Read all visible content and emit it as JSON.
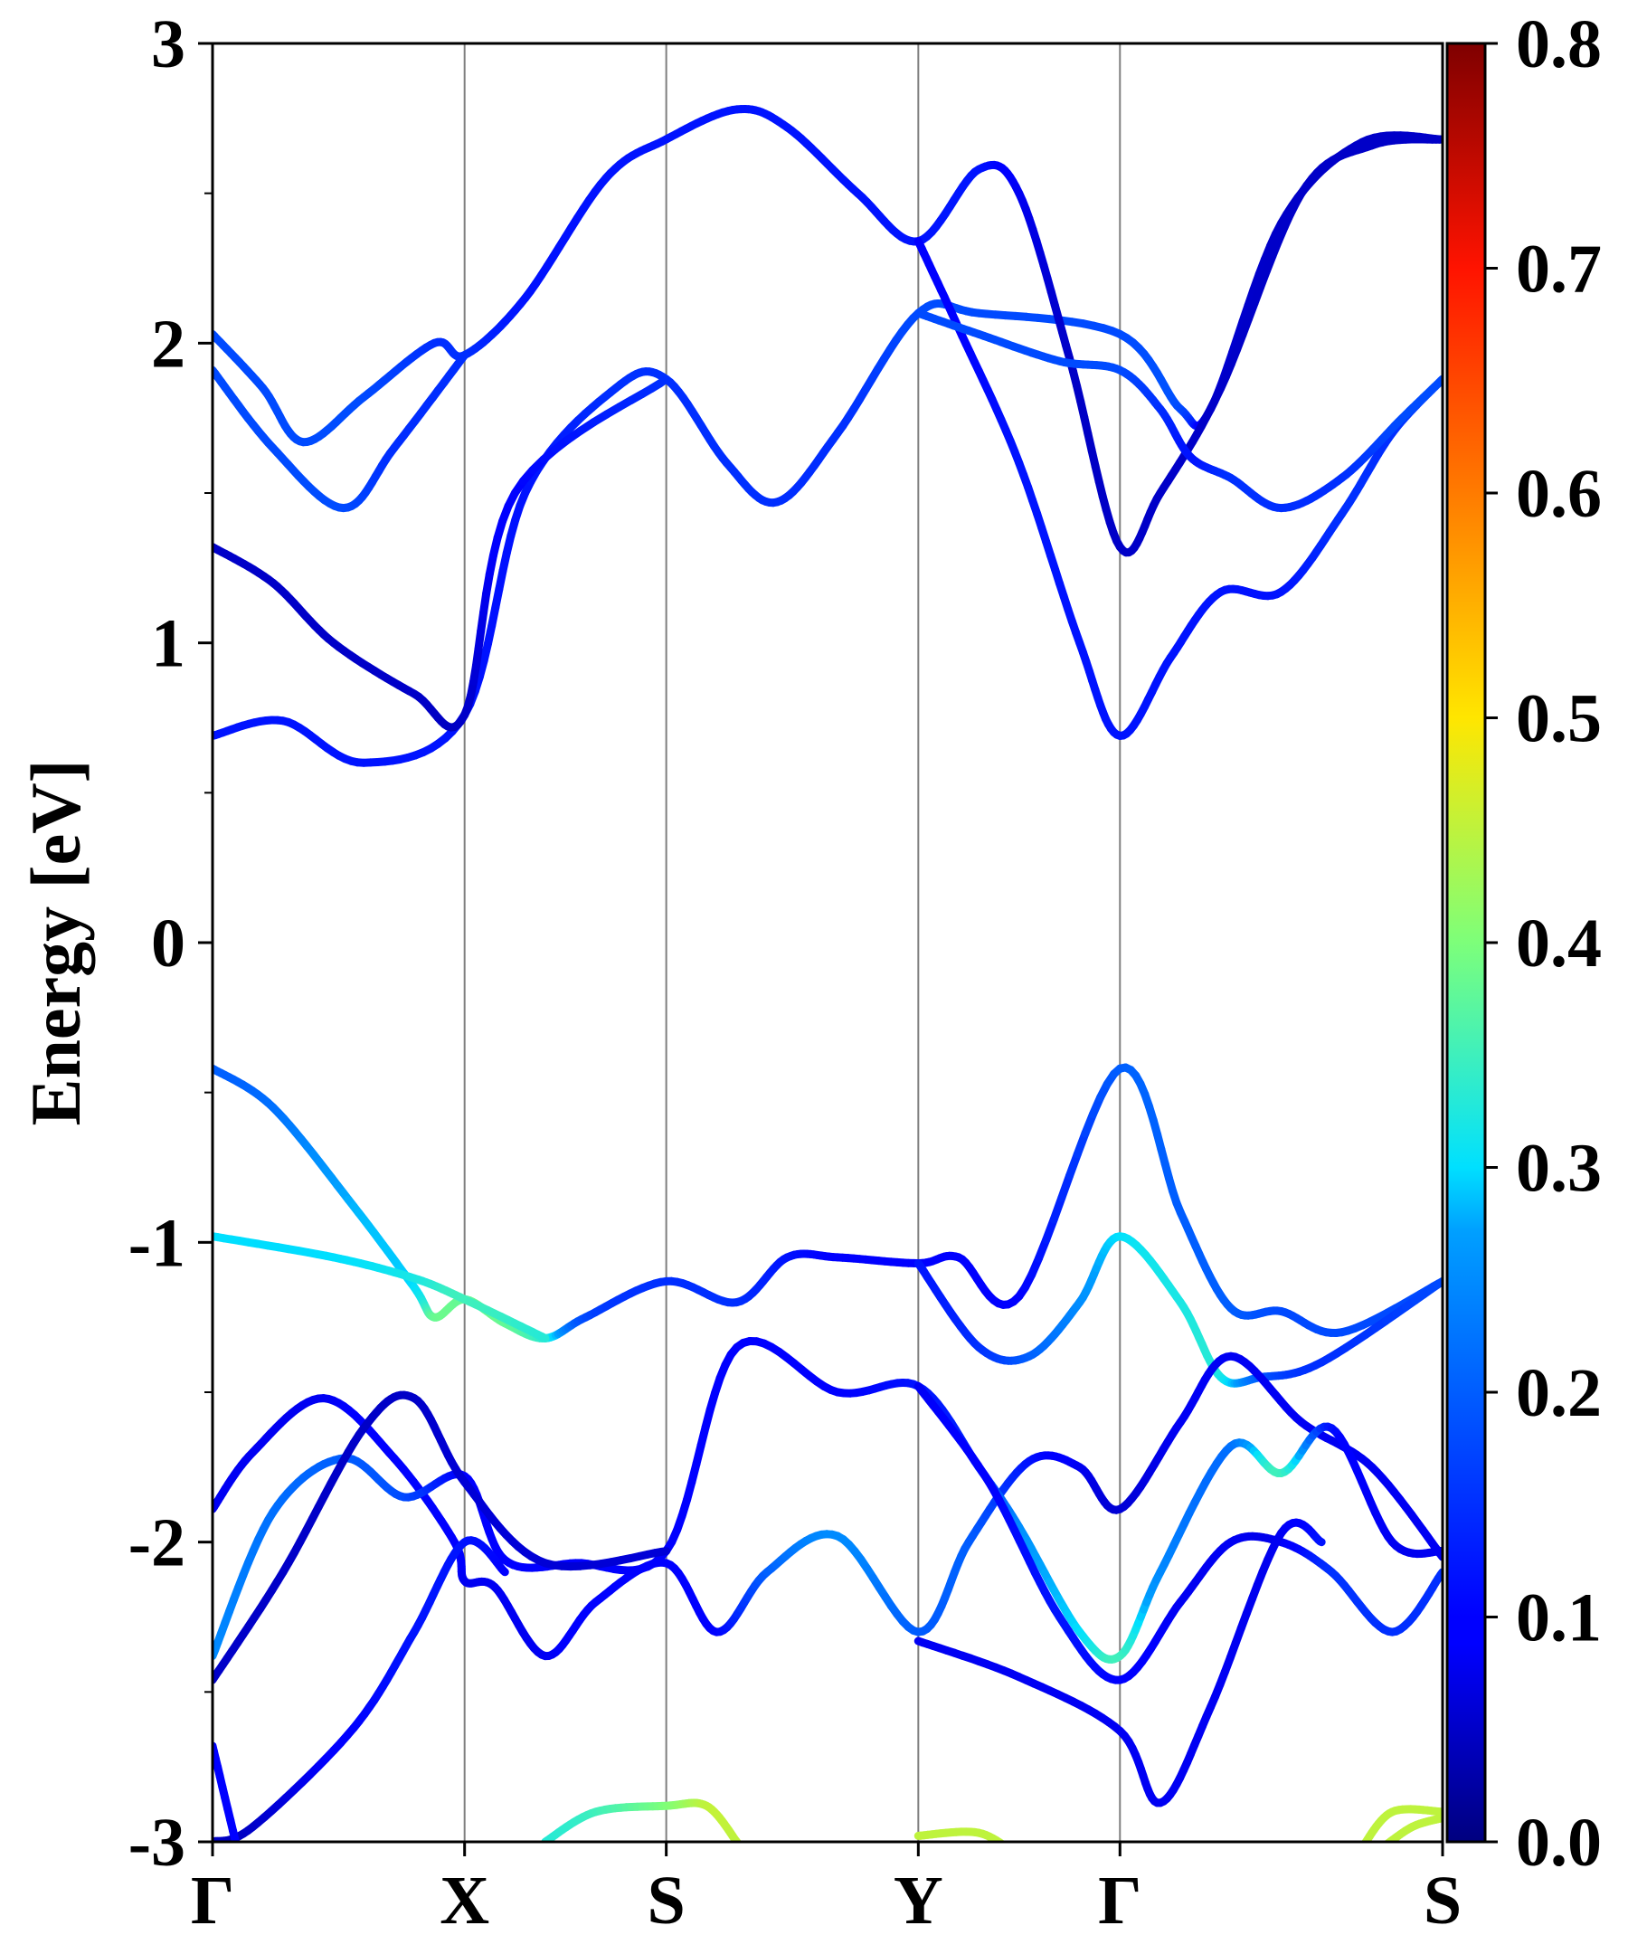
{
  "chart_data": {
    "type": "line",
    "title": "",
    "xlabel": "",
    "ylabel": "Energy [eV]",
    "ylim": [
      -3,
      3
    ],
    "yticks": [
      "-3",
      "-2",
      "-1",
      "0",
      "1",
      "2",
      "3"
    ],
    "kpoints": [
      {
        "label": "Γ",
        "x": 0
      },
      {
        "label": "X",
        "x": 1.25
      },
      {
        "label": "S",
        "x": 2.25
      },
      {
        "label": "Y",
        "x": 3.5
      },
      {
        "label": "Γ",
        "x": 4.5
      },
      {
        "label": "S",
        "x": 6.1
      }
    ],
    "colorbar": {
      "min": 0.0,
      "max": 0.8,
      "ticks": [
        "0.0",
        "0.1",
        "0.2",
        "0.3",
        "0.4",
        "0.5",
        "0.6",
        "0.7",
        "0.8"
      ],
      "colormap": "jet"
    },
    "series": [
      {
        "name": "conduction band 1",
        "points": [
          [
            0,
            0.69,
            0.12
          ],
          [
            0.35,
            0.74,
            0.12
          ],
          [
            0.75,
            0.6,
            0.12
          ],
          [
            1.25,
            0.76,
            0.12
          ],
          [
            1.55,
            1.5,
            0.12
          ],
          [
            2.0,
            1.85,
            0.15
          ],
          [
            2.25,
            1.88,
            0.15
          ],
          [
            2.55,
            1.6,
            0.15
          ],
          [
            2.8,
            1.47,
            0.15
          ],
          [
            3.1,
            1.7,
            0.15
          ],
          [
            3.5,
            2.1,
            0.18
          ],
          [
            3.8,
            2.1,
            0.18
          ],
          [
            4.5,
            2.03,
            0.18
          ],
          [
            4.8,
            1.78,
            0.18
          ],
          [
            4.95,
            1.78,
            0.07
          ],
          [
            5.3,
            2.4,
            0.05
          ],
          [
            5.7,
            2.67,
            0.05
          ],
          [
            6.1,
            2.68,
            0.05
          ]
        ]
      },
      {
        "name": "conduction band 2",
        "points": [
          [
            0,
            1.32,
            0.05
          ],
          [
            0.3,
            1.2,
            0.05
          ],
          [
            0.6,
            1.0,
            0.05
          ],
          [
            1.0,
            0.83,
            0.05
          ],
          [
            1.25,
            0.76,
            0.05
          ],
          [
            1.5,
            1.5,
            0.1
          ],
          [
            2.25,
            1.88,
            0.15
          ]
        ]
      },
      {
        "name": "conduction band 3",
        "points": [
          [
            0,
            2.03,
            0.18
          ],
          [
            0.25,
            1.85,
            0.18
          ],
          [
            0.45,
            1.67,
            0.18
          ],
          [
            0.75,
            1.82,
            0.18
          ],
          [
            1.1,
            2.0,
            0.15
          ],
          [
            1.25,
            1.96,
            0.15
          ],
          [
            1.55,
            2.15,
            0.12
          ],
          [
            1.95,
            2.55,
            0.12
          ],
          [
            2.25,
            2.68,
            0.12
          ],
          [
            2.6,
            2.78,
            0.12
          ],
          [
            2.85,
            2.72,
            0.12
          ],
          [
            3.2,
            2.5,
            0.12
          ],
          [
            3.5,
            2.34,
            0.12
          ],
          [
            3.8,
            2.58,
            0.12
          ],
          [
            4.0,
            2.5,
            0.08
          ],
          [
            4.25,
            1.95,
            0.05
          ],
          [
            4.5,
            1.32,
            0.05
          ],
          [
            4.7,
            1.5,
            0.05
          ],
          [
            5.0,
            1.85,
            0.05
          ],
          [
            5.4,
            2.5,
            0.05
          ],
          [
            5.75,
            2.66,
            0.05
          ],
          [
            6.1,
            2.68,
            0.05
          ]
        ]
      },
      {
        "name": "conduction band 4",
        "points": [
          [
            0,
            1.91,
            0.18
          ],
          [
            0.3,
            1.65,
            0.18
          ],
          [
            0.65,
            1.45,
            0.18
          ],
          [
            0.9,
            1.65,
            0.15
          ],
          [
            1.25,
            1.96,
            0.15
          ]
        ]
      },
      {
        "name": "conduction band 5",
        "points": [
          [
            3.5,
            2.34,
            0.1
          ],
          [
            3.7,
            2.05,
            0.1
          ],
          [
            4.0,
            1.6,
            0.12
          ],
          [
            4.3,
            1.0,
            0.12
          ],
          [
            4.5,
            0.69,
            0.12
          ],
          [
            4.75,
            0.95,
            0.12
          ],
          [
            5.0,
            1.17,
            0.12
          ],
          [
            5.3,
            1.17,
            0.12
          ],
          [
            5.6,
            1.43,
            0.15
          ],
          [
            5.85,
            1.7,
            0.15
          ],
          [
            6.1,
            1.88,
            0.18
          ]
        ]
      },
      {
        "name": "conduction band 6",
        "points": [
          [
            3.5,
            2.1,
            0.18
          ],
          [
            3.8,
            2.03,
            0.18
          ],
          [
            4.2,
            1.94,
            0.18
          ],
          [
            4.5,
            1.91,
            0.18
          ],
          [
            4.7,
            1.78,
            0.15
          ],
          [
            4.85,
            1.62,
            0.12
          ],
          [
            5.05,
            1.55,
            0.15
          ],
          [
            5.3,
            1.45,
            0.15
          ],
          [
            5.6,
            1.55,
            0.15
          ],
          [
            5.9,
            1.75,
            0.18
          ],
          [
            6.1,
            1.88,
            0.18
          ]
        ]
      },
      {
        "name": "valence band 1",
        "points": [
          [
            0,
            -0.42,
            0.2
          ],
          [
            0.3,
            -0.55,
            0.22
          ],
          [
            0.7,
            -0.88,
            0.28
          ],
          [
            1.0,
            -1.15,
            0.3
          ],
          [
            1.1,
            -1.25,
            0.38
          ],
          [
            1.25,
            -1.19,
            0.38
          ],
          [
            1.45,
            -1.27,
            0.38
          ],
          [
            1.65,
            -1.32,
            0.33
          ],
          [
            1.85,
            -1.25,
            0.18
          ],
          [
            2.25,
            -1.13,
            0.15
          ],
          [
            2.6,
            -1.2,
            0.15
          ],
          [
            2.85,
            -1.05,
            0.12
          ],
          [
            3.1,
            -1.05,
            0.1
          ],
          [
            3.5,
            -1.07,
            0.1
          ],
          [
            3.7,
            -1.05,
            0.1
          ],
          [
            4.0,
            -1.18,
            0.1
          ],
          [
            4.5,
            -0.42,
            0.2
          ],
          [
            4.8,
            -0.9,
            0.2
          ],
          [
            5.05,
            -1.22,
            0.2
          ],
          [
            5.3,
            -1.23,
            0.18
          ],
          [
            5.6,
            -1.3,
            0.18
          ],
          [
            6.1,
            -1.13,
            0.18
          ]
        ]
      },
      {
        "name": "valence band 2",
        "points": [
          [
            0,
            -0.98,
            0.3
          ],
          [
            0.6,
            -1.05,
            0.3
          ],
          [
            1.0,
            -1.12,
            0.32
          ],
          [
            1.25,
            -1.19,
            0.35
          ],
          [
            1.65,
            -1.32,
            0.33
          ]
        ]
      },
      {
        "name": "valence band 3",
        "points": [
          [
            3.5,
            -1.07,
            0.12
          ],
          [
            3.8,
            -1.35,
            0.15
          ],
          [
            4.05,
            -1.38,
            0.2
          ],
          [
            4.3,
            -1.2,
            0.25
          ],
          [
            4.5,
            -0.98,
            0.3
          ],
          [
            4.8,
            -1.2,
            0.32
          ],
          [
            5.0,
            -1.45,
            0.32
          ],
          [
            5.2,
            -1.45,
            0.2
          ],
          [
            5.5,
            -1.4,
            0.15
          ],
          [
            6.1,
            -1.13,
            0.18
          ]
        ]
      },
      {
        "name": "valence band 4",
        "points": [
          [
            0,
            -1.89,
            0.08
          ],
          [
            0.2,
            -1.7,
            0.08
          ],
          [
            0.55,
            -1.52,
            0.08
          ],
          [
            0.9,
            -1.72,
            0.1
          ],
          [
            1.2,
            -2.0,
            0.1
          ],
          [
            1.25,
            -2.13,
            0.08
          ],
          [
            1.4,
            -2.15,
            0.08
          ],
          [
            1.65,
            -2.38,
            0.08
          ],
          [
            1.9,
            -2.2,
            0.1
          ],
          [
            2.25,
            -2.07,
            0.1
          ],
          [
            2.5,
            -2.3,
            0.1
          ],
          [
            2.75,
            -2.1,
            0.2
          ],
          [
            3.1,
            -1.98,
            0.25
          ],
          [
            3.5,
            -2.3,
            0.2
          ],
          [
            3.75,
            -2.0,
            0.2
          ],
          [
            4.05,
            -1.73,
            0.12
          ],
          [
            4.3,
            -1.75,
            0.08
          ],
          [
            4.5,
            -1.89,
            0.06
          ],
          [
            4.8,
            -1.6,
            0.08
          ],
          [
            5.05,
            -1.38,
            0.08
          ],
          [
            5.4,
            -1.6,
            0.08
          ],
          [
            5.75,
            -1.75,
            0.08
          ],
          [
            6.1,
            -2.05,
            0.08
          ]
        ]
      },
      {
        "name": "valence band 5",
        "points": [
          [
            0,
            -2.38,
            0.25
          ],
          [
            0.3,
            -1.9,
            0.22
          ],
          [
            0.65,
            -1.72,
            0.2
          ],
          [
            0.95,
            -1.85,
            0.18
          ],
          [
            1.25,
            -1.78,
            0.1
          ],
          [
            1.45,
            -2.06,
            0.1
          ],
          [
            1.8,
            -2.07,
            0.1
          ],
          [
            2.25,
            -2.03,
            0.1
          ],
          [
            2.6,
            -1.35,
            0.1
          ],
          [
            3.1,
            -1.5,
            0.1
          ],
          [
            3.5,
            -1.48,
            0.12
          ],
          [
            3.8,
            -1.75,
            0.15
          ],
          [
            4.0,
            -1.95,
            0.25
          ],
          [
            4.3,
            -2.3,
            0.3
          ],
          [
            4.5,
            -2.38,
            0.35
          ],
          [
            4.7,
            -2.1,
            0.25
          ],
          [
            5.05,
            -1.68,
            0.22
          ],
          [
            5.3,
            -1.77,
            0.35
          ],
          [
            5.55,
            -1.62,
            0.12
          ],
          [
            5.85,
            -2.0,
            0.08
          ],
          [
            6.1,
            -2.03,
            0.08
          ]
        ]
      },
      {
        "name": "valence band 6",
        "points": [
          [
            0,
            -2.46,
            0.05
          ],
          [
            0.35,
            -2.1,
            0.05
          ],
          [
            0.75,
            -1.62,
            0.05
          ],
          [
            1.0,
            -1.52,
            0.05
          ],
          [
            1.25,
            -1.8,
            0.06
          ],
          [
            1.65,
            -2.07,
            0.06
          ],
          [
            2.25,
            -2.03,
            0.06
          ]
        ]
      },
      {
        "name": "valence band 7",
        "points": [
          [
            3.5,
            -1.48,
            0.08
          ],
          [
            3.85,
            -1.8,
            0.1
          ],
          [
            4.2,
            -2.25,
            0.12
          ],
          [
            4.5,
            -2.46,
            0.1
          ],
          [
            4.8,
            -2.2,
            0.08
          ],
          [
            5.05,
            -2.0,
            0.08
          ],
          [
            5.3,
            -2.0,
            0.08
          ],
          [
            5.55,
            -2.1,
            0.15
          ],
          [
            5.85,
            -2.3,
            0.15
          ],
          [
            6.1,
            -2.1,
            0.15
          ]
        ]
      },
      {
        "name": "valence band 8",
        "points": [
          [
            3.5,
            -2.33,
            0.08
          ],
          [
            4.0,
            -2.45,
            0.08
          ],
          [
            4.5,
            -2.63,
            0.08
          ],
          [
            4.7,
            -2.87,
            0.08
          ],
          [
            4.95,
            -2.55,
            0.08
          ],
          [
            5.3,
            -1.97,
            0.08
          ],
          [
            5.5,
            -2.0,
            0.12
          ]
        ]
      },
      {
        "name": "valence band 9",
        "points": [
          [
            0,
            -3.0,
            0.05
          ],
          [
            0.2,
            -2.95,
            0.05
          ],
          [
            0.7,
            -2.62,
            0.1
          ],
          [
            1.0,
            -2.3,
            0.12
          ],
          [
            1.25,
            -2.0,
            0.12
          ],
          [
            1.45,
            -2.1,
            0.1
          ]
        ]
      },
      {
        "name": "valence band 10",
        "points": [
          [
            0,
            -2.68,
            0.1
          ],
          [
            0.15,
            -3.1,
            0.1
          ]
        ]
      },
      {
        "name": "deep band 1",
        "points": [
          [
            1.65,
            -3.0,
            0.33
          ],
          [
            1.9,
            -2.9,
            0.35
          ],
          [
            2.25,
            -2.88,
            0.4
          ],
          [
            2.45,
            -2.88,
            0.45
          ],
          [
            2.6,
            -3.0,
            0.45
          ]
        ]
      },
      {
        "name": "deep band 2",
        "points": [
          [
            3.5,
            -2.98,
            0.45
          ],
          [
            3.8,
            -2.97,
            0.45
          ],
          [
            4.0,
            -3.05,
            0.45
          ]
        ]
      },
      {
        "name": "deep band 3",
        "points": [
          [
            5.7,
            -3.02,
            0.45
          ],
          [
            5.85,
            -2.9,
            0.45
          ],
          [
            6.1,
            -2.9,
            0.45
          ]
        ]
      },
      {
        "name": "deep band 4",
        "points": [
          [
            5.8,
            -3.02,
            0.45
          ],
          [
            5.95,
            -2.95,
            0.45
          ],
          [
            6.1,
            -2.92,
            0.45
          ]
        ]
      }
    ]
  }
}
